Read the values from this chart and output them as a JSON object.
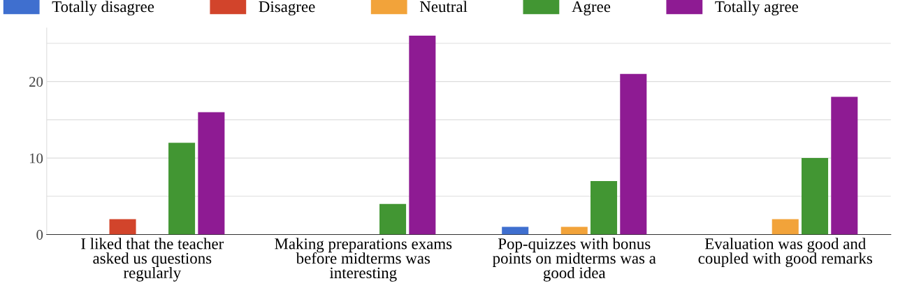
{
  "chart_data": {
    "type": "bar",
    "categories": [
      "I liked that the teacher asked us questions regularly",
      "Making preparations exams before midterms was interesting",
      "Pop-quizzes with bonus points on midterms was a good idea",
      "Evaluation was good and coupled with good remarks"
    ],
    "series": [
      {
        "name": "Totally disagree",
        "color": "#3f6fcf",
        "values": [
          0,
          0,
          1,
          0
        ]
      },
      {
        "name": "Disagree",
        "color": "#d2442b",
        "values": [
          2,
          0,
          0,
          0
        ]
      },
      {
        "name": "Neutral",
        "color": "#f2a33a",
        "values": [
          0,
          0,
          1,
          2
        ]
      },
      {
        "name": "Agree",
        "color": "#429633",
        "values": [
          12,
          4,
          7,
          10
        ]
      },
      {
        "name": "Totally agree",
        "color": "#8e1b93",
        "values": [
          16,
          26,
          21,
          18
        ]
      }
    ],
    "ylim": [
      0,
      27
    ],
    "yticks": [
      0,
      {
        "value": 5,
        "label": null
      },
      10,
      {
        "value": 15,
        "label": null
      },
      20,
      {
        "value": 25,
        "label": null
      }
    ],
    "grid": "y",
    "legend": "top"
  }
}
